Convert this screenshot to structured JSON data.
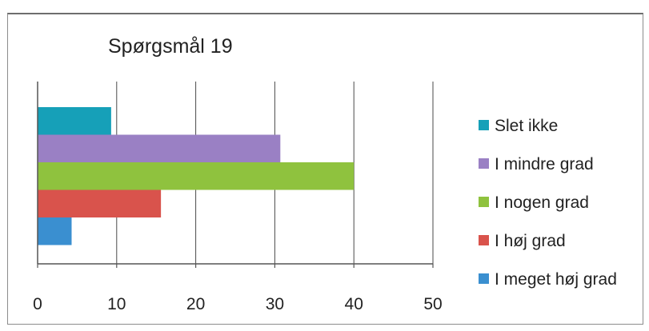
{
  "chart_data": {
    "type": "bar",
    "orientation": "horizontal",
    "title": "Spørgsmål 19",
    "xlabel": "",
    "ylabel": "",
    "xlim": [
      0,
      50
    ],
    "x_ticks": [
      "0",
      "10",
      "20",
      "30",
      "40",
      "50"
    ],
    "grid": true,
    "legend_position": "right",
    "series": [
      {
        "name": "Slet ikke",
        "value": 9.3,
        "color": "#16A0B8"
      },
      {
        "name": "I mindre grad",
        "value": 30.7,
        "color": "#9A80C4"
      },
      {
        "name": "I nogen grad",
        "value": 40,
        "color": "#8FC23E"
      },
      {
        "name": "I høj grad",
        "value": 15.6,
        "color": "#D9534C"
      },
      {
        "name": "I meget høj grad",
        "value": 4.3,
        "color": "#3A8FD0"
      }
    ]
  }
}
